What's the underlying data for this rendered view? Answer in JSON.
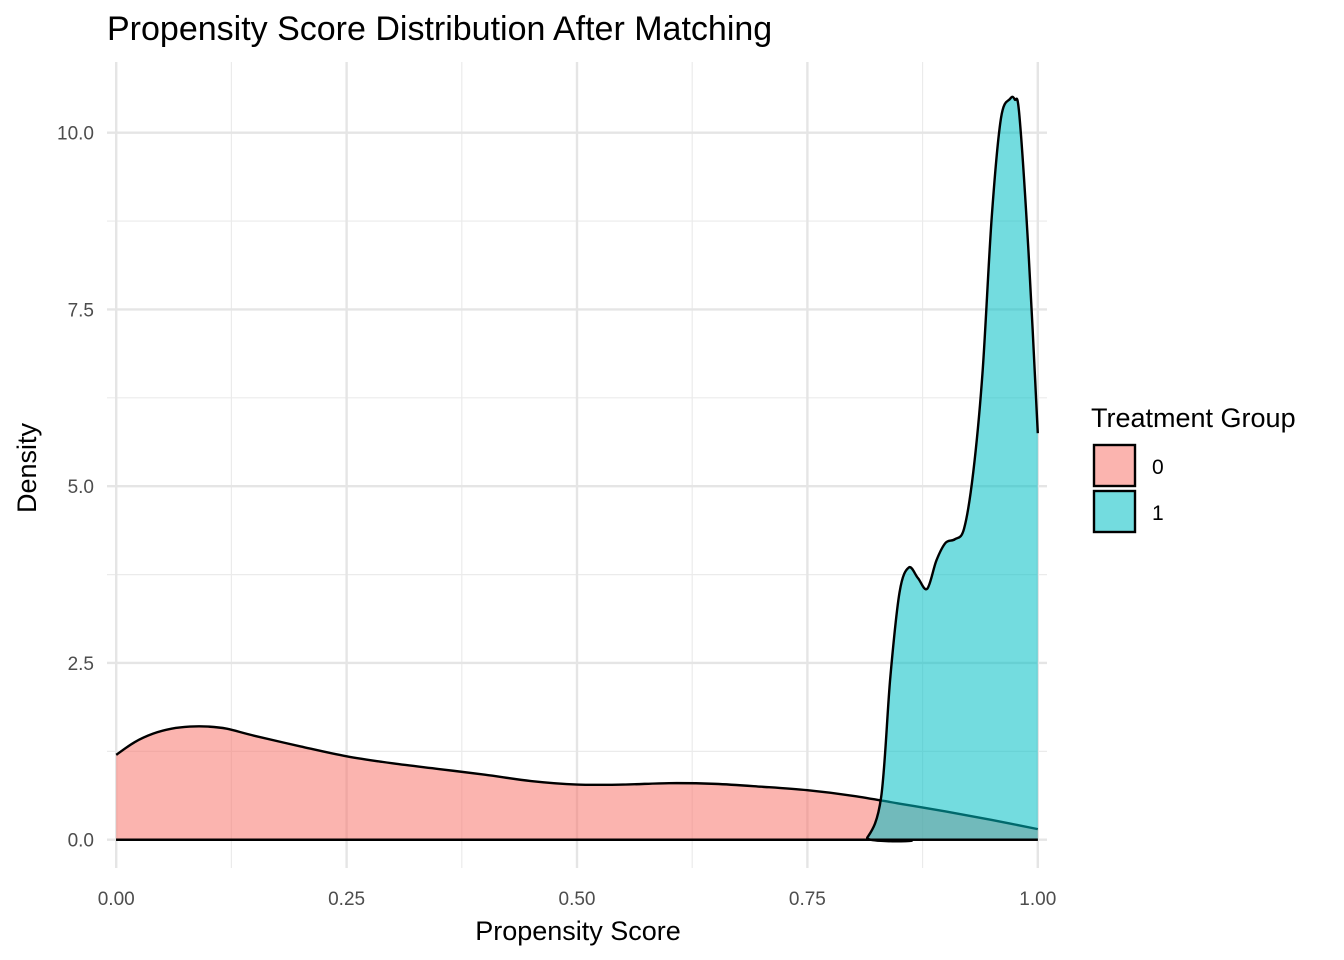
{
  "chart_data": {
    "type": "area",
    "title": "Propensity Score Distribution After Matching",
    "xlabel": "Propensity Score",
    "ylabel": "Density",
    "xlim": [
      -0.01,
      1.01
    ],
    "ylim": [
      -0.4,
      11.0
    ],
    "x_ticks": [
      0.0,
      0.25,
      0.5,
      0.75,
      1.0
    ],
    "x_tick_labels": [
      "0.00",
      "0.25",
      "0.50",
      "0.75",
      "1.00"
    ],
    "y_ticks": [
      0.0,
      2.5,
      5.0,
      7.5,
      10.0
    ],
    "y_tick_labels": [
      "0.0",
      "2.5",
      "5.0",
      "7.5",
      "10.0"
    ],
    "grid": true,
    "legend": {
      "title": "Treatment Group",
      "position": "right"
    },
    "series": [
      {
        "name": "0",
        "color": "#F8766D",
        "x": [
          0.0,
          0.02,
          0.04,
          0.06,
          0.08,
          0.1,
          0.12,
          0.15,
          0.2,
          0.25,
          0.3,
          0.35,
          0.4,
          0.45,
          0.5,
          0.55,
          0.6,
          0.65,
          0.7,
          0.75,
          0.8,
          0.85,
          0.9,
          0.95,
          1.0
        ],
        "y": [
          1.2,
          1.38,
          1.5,
          1.57,
          1.6,
          1.6,
          1.57,
          1.47,
          1.32,
          1.18,
          1.08,
          1.0,
          0.92,
          0.83,
          0.78,
          0.78,
          0.8,
          0.79,
          0.75,
          0.7,
          0.62,
          0.51,
          0.4,
          0.28,
          0.15
        ]
      },
      {
        "name": "1",
        "color": "#00BFC4",
        "x": [
          0.0,
          0.8,
          0.815,
          0.83,
          0.84,
          0.85,
          0.86,
          0.87,
          0.88,
          0.89,
          0.9,
          0.91,
          0.92,
          0.93,
          0.94,
          0.95,
          0.96,
          0.97,
          0.975,
          0.98,
          0.99,
          1.0
        ],
        "y": [
          0.0,
          0.0,
          0.03,
          0.6,
          2.3,
          3.5,
          3.85,
          3.7,
          3.55,
          3.95,
          4.2,
          4.25,
          4.4,
          5.2,
          6.6,
          8.8,
          10.2,
          10.48,
          10.47,
          10.25,
          8.3,
          5.75
        ]
      }
    ]
  }
}
